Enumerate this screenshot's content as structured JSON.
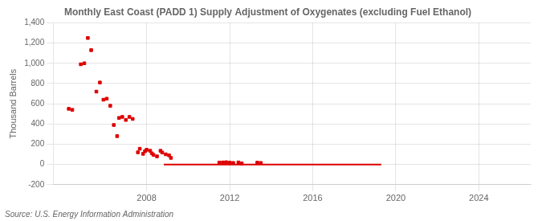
{
  "chart_data": {
    "type": "scatter",
    "title": "Monthly East Coast (PADD 1) Supply Adjustment of Oxygenates (excluding Fuel Ethanol)",
    "ylabel": "Thousand Barrels",
    "annotations": [
      "Source: U.S. Energy Information Administration"
    ],
    "xlim": [
      2003.5,
      2026.5
    ],
    "xticks": [
      2008,
      2012,
      2016,
      2020,
      2024
    ],
    "ylim": [
      -200,
      1400
    ],
    "yticks": [
      -200,
      0,
      200,
      400,
      600,
      800,
      {
        "value": 1000,
        "label": "1,000"
      },
      {
        "value": 1200,
        "label": "1,200"
      },
      {
        "value": 1400,
        "label": "1,400"
      }
    ],
    "grid": true,
    "series": [
      {
        "type": "scatter",
        "color": "#dd0000",
        "marker": "square",
        "x": [
          2004.25,
          2004.42,
          2004.83,
          2005.0,
          2005.17,
          2005.33,
          2005.58,
          2005.75,
          2005.92,
          2006.08,
          2006.25,
          2006.42,
          2006.58,
          2006.67,
          2006.83,
          2007.0,
          2007.17,
          2007.33,
          2007.58,
          2007.67,
          2007.83,
          2007.92,
          2008.0,
          2008.17,
          2008.25,
          2008.33,
          2008.5,
          2008.67,
          2008.75,
          2008.92,
          2009.08,
          2009.17
        ],
        "values": [
          550,
          540,
          990,
          1000,
          1250,
          1130,
          720,
          810,
          640,
          650,
          580,
          390,
          280,
          460,
          470,
          440,
          470,
          450,
          120,
          155,
          105,
          130,
          145,
          135,
          110,
          95,
          80,
          135,
          118,
          100,
          90,
          65
        ]
      },
      {
        "type": "line",
        "color": "#dd0000",
        "x": [
          2008.83,
          2019.3
        ],
        "values": [
          0,
          0
        ]
      },
      {
        "type": "scatter",
        "color": "#dd0000",
        "marker": "square",
        "x": [
          2011.5,
          2011.67,
          2011.83,
          2012.0,
          2012.17,
          2012.42,
          2012.58,
          2013.33,
          2013.5
        ],
        "values": [
          18,
          20,
          22,
          18,
          15,
          20,
          10,
          18,
          15
        ]
      }
    ]
  }
}
